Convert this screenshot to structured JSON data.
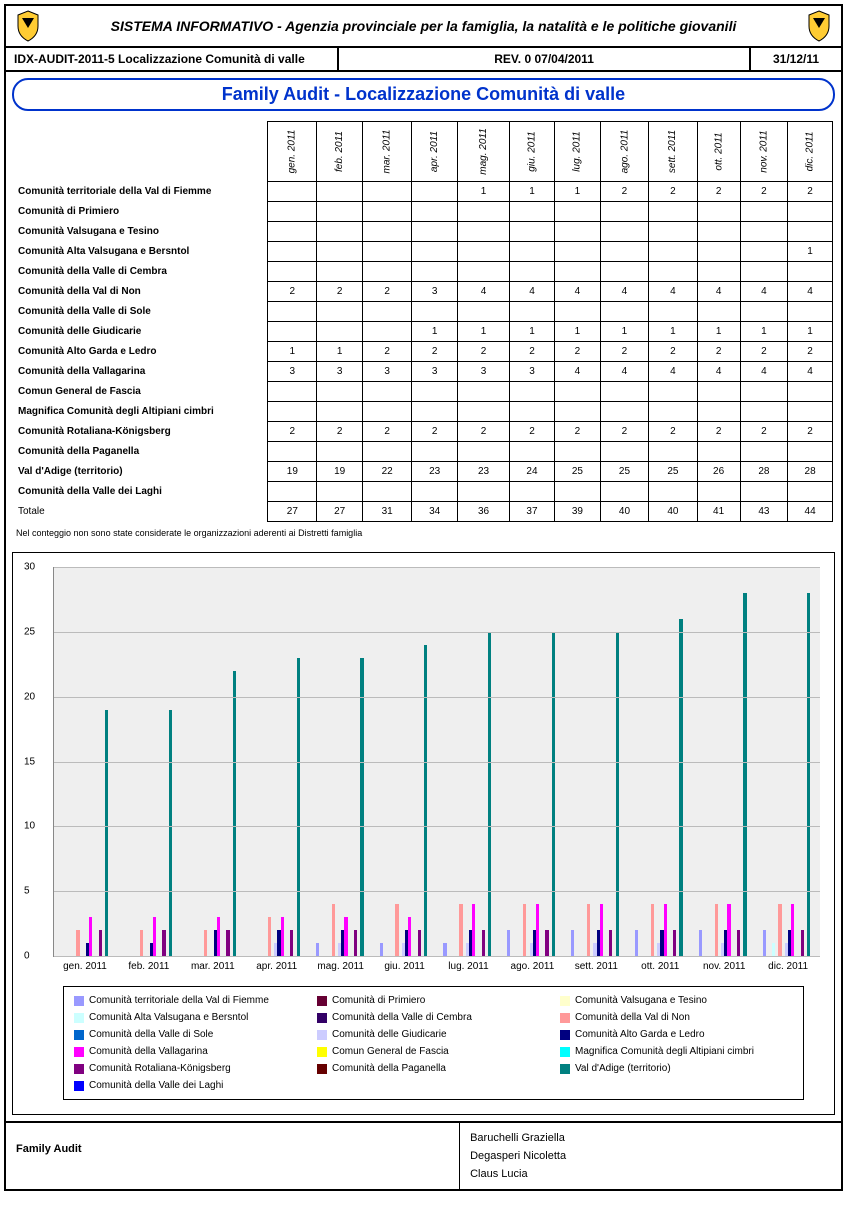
{
  "header": {
    "title": "SISTEMA  INFORMATIVO  -  Agenzia provinciale per la famiglia, la natalità e le politiche giovanili"
  },
  "subheader": {
    "left": "IDX-AUDIT-2011-5 Localizzazione Comunità di valle",
    "mid": "REV. 0  07/04/2011",
    "right": "31/12/11"
  },
  "banner": "Family Audit - Localizzazione Comunità di valle",
  "months": [
    "gen. 2011",
    "feb. 2011",
    "mar. 2011",
    "apr. 2011",
    "mag. 2011",
    "giu. 2011",
    "lug. 2011",
    "ago. 2011",
    "sett. 2011",
    "ott. 2011",
    "nov. 2011",
    "dic. 2011"
  ],
  "rows": [
    {
      "label": "Comunità territoriale della Val di Fiemme",
      "v": [
        "",
        "",
        "",
        "",
        "1",
        "1",
        "1",
        "2",
        "2",
        "2",
        "2",
        "2"
      ]
    },
    {
      "label": "Comunità di Primiero",
      "v": [
        "",
        "",
        "",
        "",
        "",
        "",
        "",
        "",
        "",
        "",
        "",
        ""
      ]
    },
    {
      "label": "Comunità Valsugana e Tesino",
      "v": [
        "",
        "",
        "",
        "",
        "",
        "",
        "",
        "",
        "",
        "",
        "",
        ""
      ]
    },
    {
      "label": "Comunità Alta Valsugana e Bersntol",
      "v": [
        "",
        "",
        "",
        "",
        "",
        "",
        "",
        "",
        "",
        "",
        "",
        "1"
      ]
    },
    {
      "label": "Comunità della Valle di Cembra",
      "v": [
        "",
        "",
        "",
        "",
        "",
        "",
        "",
        "",
        "",
        "",
        "",
        ""
      ]
    },
    {
      "label": "Comunità della Val di Non",
      "v": [
        "2",
        "2",
        "2",
        "3",
        "4",
        "4",
        "4",
        "4",
        "4",
        "4",
        "4",
        "4"
      ]
    },
    {
      "label": "Comunità della Valle di Sole",
      "v": [
        "",
        "",
        "",
        "",
        "",
        "",
        "",
        "",
        "",
        "",
        "",
        ""
      ]
    },
    {
      "label": "Comunità delle Giudicarie",
      "v": [
        "",
        "",
        "",
        "1",
        "1",
        "1",
        "1",
        "1",
        "1",
        "1",
        "1",
        "1"
      ]
    },
    {
      "label": "Comunità Alto Garda e Ledro",
      "v": [
        "1",
        "1",
        "2",
        "2",
        "2",
        "2",
        "2",
        "2",
        "2",
        "2",
        "2",
        "2"
      ]
    },
    {
      "label": "Comunità della Vallagarina",
      "v": [
        "3",
        "3",
        "3",
        "3",
        "3",
        "3",
        "4",
        "4",
        "4",
        "4",
        "4",
        "4"
      ]
    },
    {
      "label": "Comun General de Fascia",
      "v": [
        "",
        "",
        "",
        "",
        "",
        "",
        "",
        "",
        "",
        "",
        "",
        ""
      ]
    },
    {
      "label": "Magnifica Comunità degli Altipiani cimbri",
      "v": [
        "",
        "",
        "",
        "",
        "",
        "",
        "",
        "",
        "",
        "",
        "",
        ""
      ]
    },
    {
      "label": "Comunità Rotaliana-Königsberg",
      "v": [
        "2",
        "2",
        "2",
        "2",
        "2",
        "2",
        "2",
        "2",
        "2",
        "2",
        "2",
        "2"
      ]
    },
    {
      "label": "Comunità della Paganella",
      "v": [
        "",
        "",
        "",
        "",
        "",
        "",
        "",
        "",
        "",
        "",
        "",
        ""
      ]
    },
    {
      "label": "Val d'Adige (territorio)",
      "v": [
        "19",
        "19",
        "22",
        "23",
        "23",
        "24",
        "25",
        "25",
        "25",
        "26",
        "28",
        "28"
      ]
    },
    {
      "label": "Comunità della Valle dei Laghi",
      "v": [
        "",
        "",
        "",
        "",
        "",
        "",
        "",
        "",
        "",
        "",
        "",
        ""
      ]
    }
  ],
  "total": {
    "label": "Totale",
    "v": [
      "27",
      "27",
      "31",
      "34",
      "36",
      "37",
      "39",
      "40",
      "40",
      "41",
      "43",
      "44"
    ]
  },
  "note": "Nel conteggio non sono state considerate le organizzazioni aderenti ai Distretti famiglia",
  "chart": {
    "ymax": 30,
    "yticks": [
      0,
      5,
      10,
      15,
      20,
      25,
      30
    ],
    "grid_color": "#bbbbbb",
    "background": "#efefef",
    "series_colors": [
      "#9999ff",
      "#660033",
      "#ffffcc",
      "#ccffff",
      "#330066",
      "#ff9999",
      "#0066cc",
      "#ccccff",
      "#000080",
      "#ff00ff",
      "#ffff00",
      "#00ffff",
      "#800080",
      "#660000",
      "#008080",
      "#0000ff"
    ]
  },
  "legend": [
    "Comunità territoriale della Val di Fiemme",
    "Comunità di Primiero",
    "Comunità Valsugana e Tesino",
    "Comunità Alta Valsugana e Bersntol",
    "Comunità della Valle di Cembra",
    "Comunità della Val di Non",
    "Comunità della Valle di Sole",
    "Comunità delle Giudicarie",
    "Comunità Alto Garda e Ledro",
    "Comunità della Vallagarina",
    "Comun General de Fascia",
    "Magnifica Comunità degli Altipiani cimbri",
    "Comunità Rotaliana-Königsberg",
    "Comunità della Paganella",
    "Val d'Adige (territorio)",
    "Comunità della Valle dei Laghi"
  ],
  "footer": {
    "left": "Family Audit",
    "names": [
      "Baruchelli Graziella",
      "Degasperi Nicoletta",
      "Claus Lucia"
    ]
  }
}
